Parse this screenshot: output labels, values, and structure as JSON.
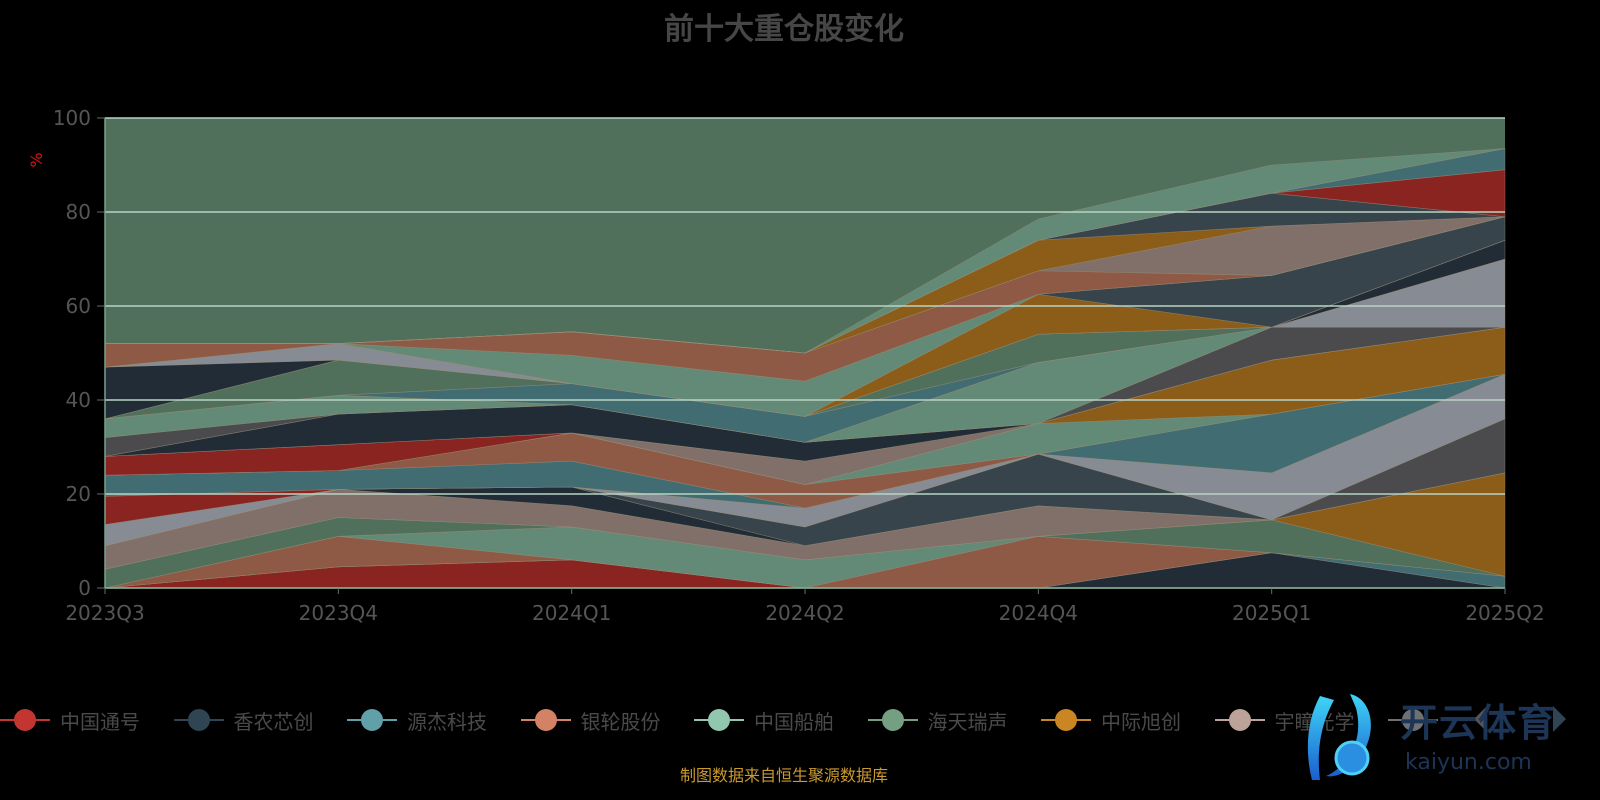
{
  "title": "前十大重仓股变化",
  "footer": "制图数据来自恒生聚源数据库",
  "logo": {
    "cn": "开云体育",
    "en": "kaiyun.com"
  },
  "legend": [
    {
      "name": "中国通号",
      "color": "#c23531"
    },
    {
      "name": "香农芯创",
      "color": "#2f4554"
    },
    {
      "name": "源杰科技",
      "color": "#61a0a8"
    },
    {
      "name": "银轮股份",
      "color": "#d48265"
    },
    {
      "name": "中国船舶",
      "color": "#91c7ae"
    },
    {
      "name": "海天瑞声",
      "color": "#749f83"
    },
    {
      "name": "中际旭创",
      "color": "#ca8622"
    },
    {
      "name": "宇瞳光学",
      "color": "#bda29a"
    },
    {
      "name": "",
      "color": "#6e7074"
    }
  ],
  "chart_data": {
    "type": "area",
    "stacked": true,
    "title": "前十大重仓股变化",
    "ylabel": "%",
    "ylim": [
      0,
      100
    ],
    "yticks": [
      "0",
      "20",
      "40",
      "60",
      "80",
      "100"
    ],
    "categories": [
      "2023Q3",
      "2023Q4",
      "2024Q1",
      "2024Q2",
      "2024Q4",
      "2025Q1",
      "2025Q2"
    ],
    "grid": true,
    "legend_position": "bottom",
    "remainder_color": "#51705b",
    "layers": [
      {
        "color": "#8a2421",
        "values": [
          0,
          4.5,
          6,
          0,
          0,
          0,
          0
        ]
      },
      {
        "color": "#212c37",
        "values": [
          0,
          0,
          0,
          0,
          0,
          7.5,
          0
        ]
      },
      {
        "color": "#416c72",
        "values": [
          0,
          0,
          0,
          0,
          0,
          0,
          2.5
        ]
      },
      {
        "color": "#8f5a45",
        "values": [
          0,
          6.5,
          0,
          0,
          11,
          0,
          0
        ]
      },
      {
        "color": "#638a77",
        "values": [
          0,
          0,
          7,
          6,
          0,
          0,
          0
        ]
      },
      {
        "color": "#51705b",
        "values": [
          4,
          4,
          0,
          0,
          0,
          7,
          0
        ]
      },
      {
        "color": "#8b5d19",
        "values": [
          0,
          0,
          0,
          0,
          0,
          0,
          22
        ]
      },
      {
        "color": "#817069",
        "values": [
          5,
          6,
          4.5,
          3,
          6.5,
          0,
          0
        ]
      },
      {
        "color": "#212c37",
        "values": [
          0,
          0,
          4,
          0,
          0,
          0,
          0
        ]
      },
      {
        "color": "#37444c",
        "values": [
          0,
          0,
          0,
          4,
          11,
          0,
          0
        ]
      },
      {
        "color": "#4b4b4d",
        "values": [
          0,
          0,
          0,
          0,
          0,
          0,
          11.5
        ]
      },
      {
        "color": "#878b93",
        "values": [
          4.5,
          0,
          0,
          4,
          0,
          10,
          9.5
        ]
      },
      {
        "color": "#8a2421",
        "values": [
          6,
          0,
          0,
          0,
          0,
          0,
          0
        ]
      },
      {
        "color": "#416c72",
        "values": [
          4.5,
          4,
          5.5,
          0,
          0,
          12.5,
          0
        ]
      },
      {
        "color": "#8f5a45",
        "values": [
          0,
          0,
          6,
          5,
          0,
          0,
          0
        ]
      },
      {
        "color": "#638a77",
        "values": [
          0,
          0,
          0,
          0,
          6.5,
          0,
          0
        ]
      },
      {
        "color": "#8b5d19",
        "values": [
          0,
          0,
          0,
          0,
          0,
          11.5,
          10
        ]
      },
      {
        "color": "#8a2421",
        "values": [
          4,
          5.5,
          0,
          0,
          0,
          0,
          0
        ]
      },
      {
        "color": "#817069",
        "values": [
          0,
          0,
          0,
          5,
          0,
          0,
          0
        ]
      },
      {
        "color": "#212c37",
        "values": [
          0,
          6.5,
          6,
          4,
          0,
          0,
          0
        ]
      },
      {
        "color": "#4b4b4d",
        "values": [
          4,
          0,
          0,
          0,
          0,
          7,
          0
        ]
      },
      {
        "color": "#638a77",
        "values": [
          4,
          4,
          0,
          0,
          13,
          0,
          0
        ]
      },
      {
        "color": "#878b93",
        "values": [
          0,
          0,
          0,
          0,
          0,
          0,
          14.5
        ]
      },
      {
        "color": "#416c72",
        "values": [
          0,
          0,
          4.5,
          5.5,
          0,
          0,
          0
        ]
      },
      {
        "color": "#51705b",
        "values": [
          0,
          7.5,
          0,
          0,
          6,
          0,
          0
        ]
      },
      {
        "color": "#212c37",
        "values": [
          11,
          0,
          0,
          0,
          0,
          0,
          4
        ]
      },
      {
        "color": "#878b93",
        "values": [
          0,
          3.5,
          0,
          0,
          0,
          0,
          0
        ]
      },
      {
        "color": "#8b5d19",
        "values": [
          0,
          0,
          0,
          0,
          8.5,
          0,
          0
        ]
      },
      {
        "color": "#37444c",
        "values": [
          0,
          0,
          0,
          0,
          0,
          11,
          5
        ]
      },
      {
        "color": "#638a77",
        "values": [
          0,
          0,
          6,
          7.5,
          0,
          0,
          0
        ]
      },
      {
        "color": "#8f5a45",
        "values": [
          5,
          0,
          5,
          6,
          5,
          0,
          0
        ]
      },
      {
        "color": "#817069",
        "values": [
          0,
          0,
          0,
          0,
          0,
          10.5,
          0
        ]
      },
      {
        "color": "#8b5d19",
        "values": [
          0,
          0,
          0,
          0,
          6.5,
          0,
          0
        ]
      },
      {
        "color": "#37444c",
        "values": [
          0,
          0,
          0,
          0,
          0,
          7,
          0
        ]
      },
      {
        "color": "#8a2421",
        "values": [
          0,
          0,
          0,
          0,
          0,
          0,
          10
        ]
      },
      {
        "color": "#416c72",
        "values": [
          0,
          0,
          0,
          0,
          0,
          0,
          4.5
        ]
      },
      {
        "color": "#638a77",
        "values": [
          0,
          0,
          0,
          0,
          4.5,
          6,
          0
        ]
      }
    ]
  }
}
